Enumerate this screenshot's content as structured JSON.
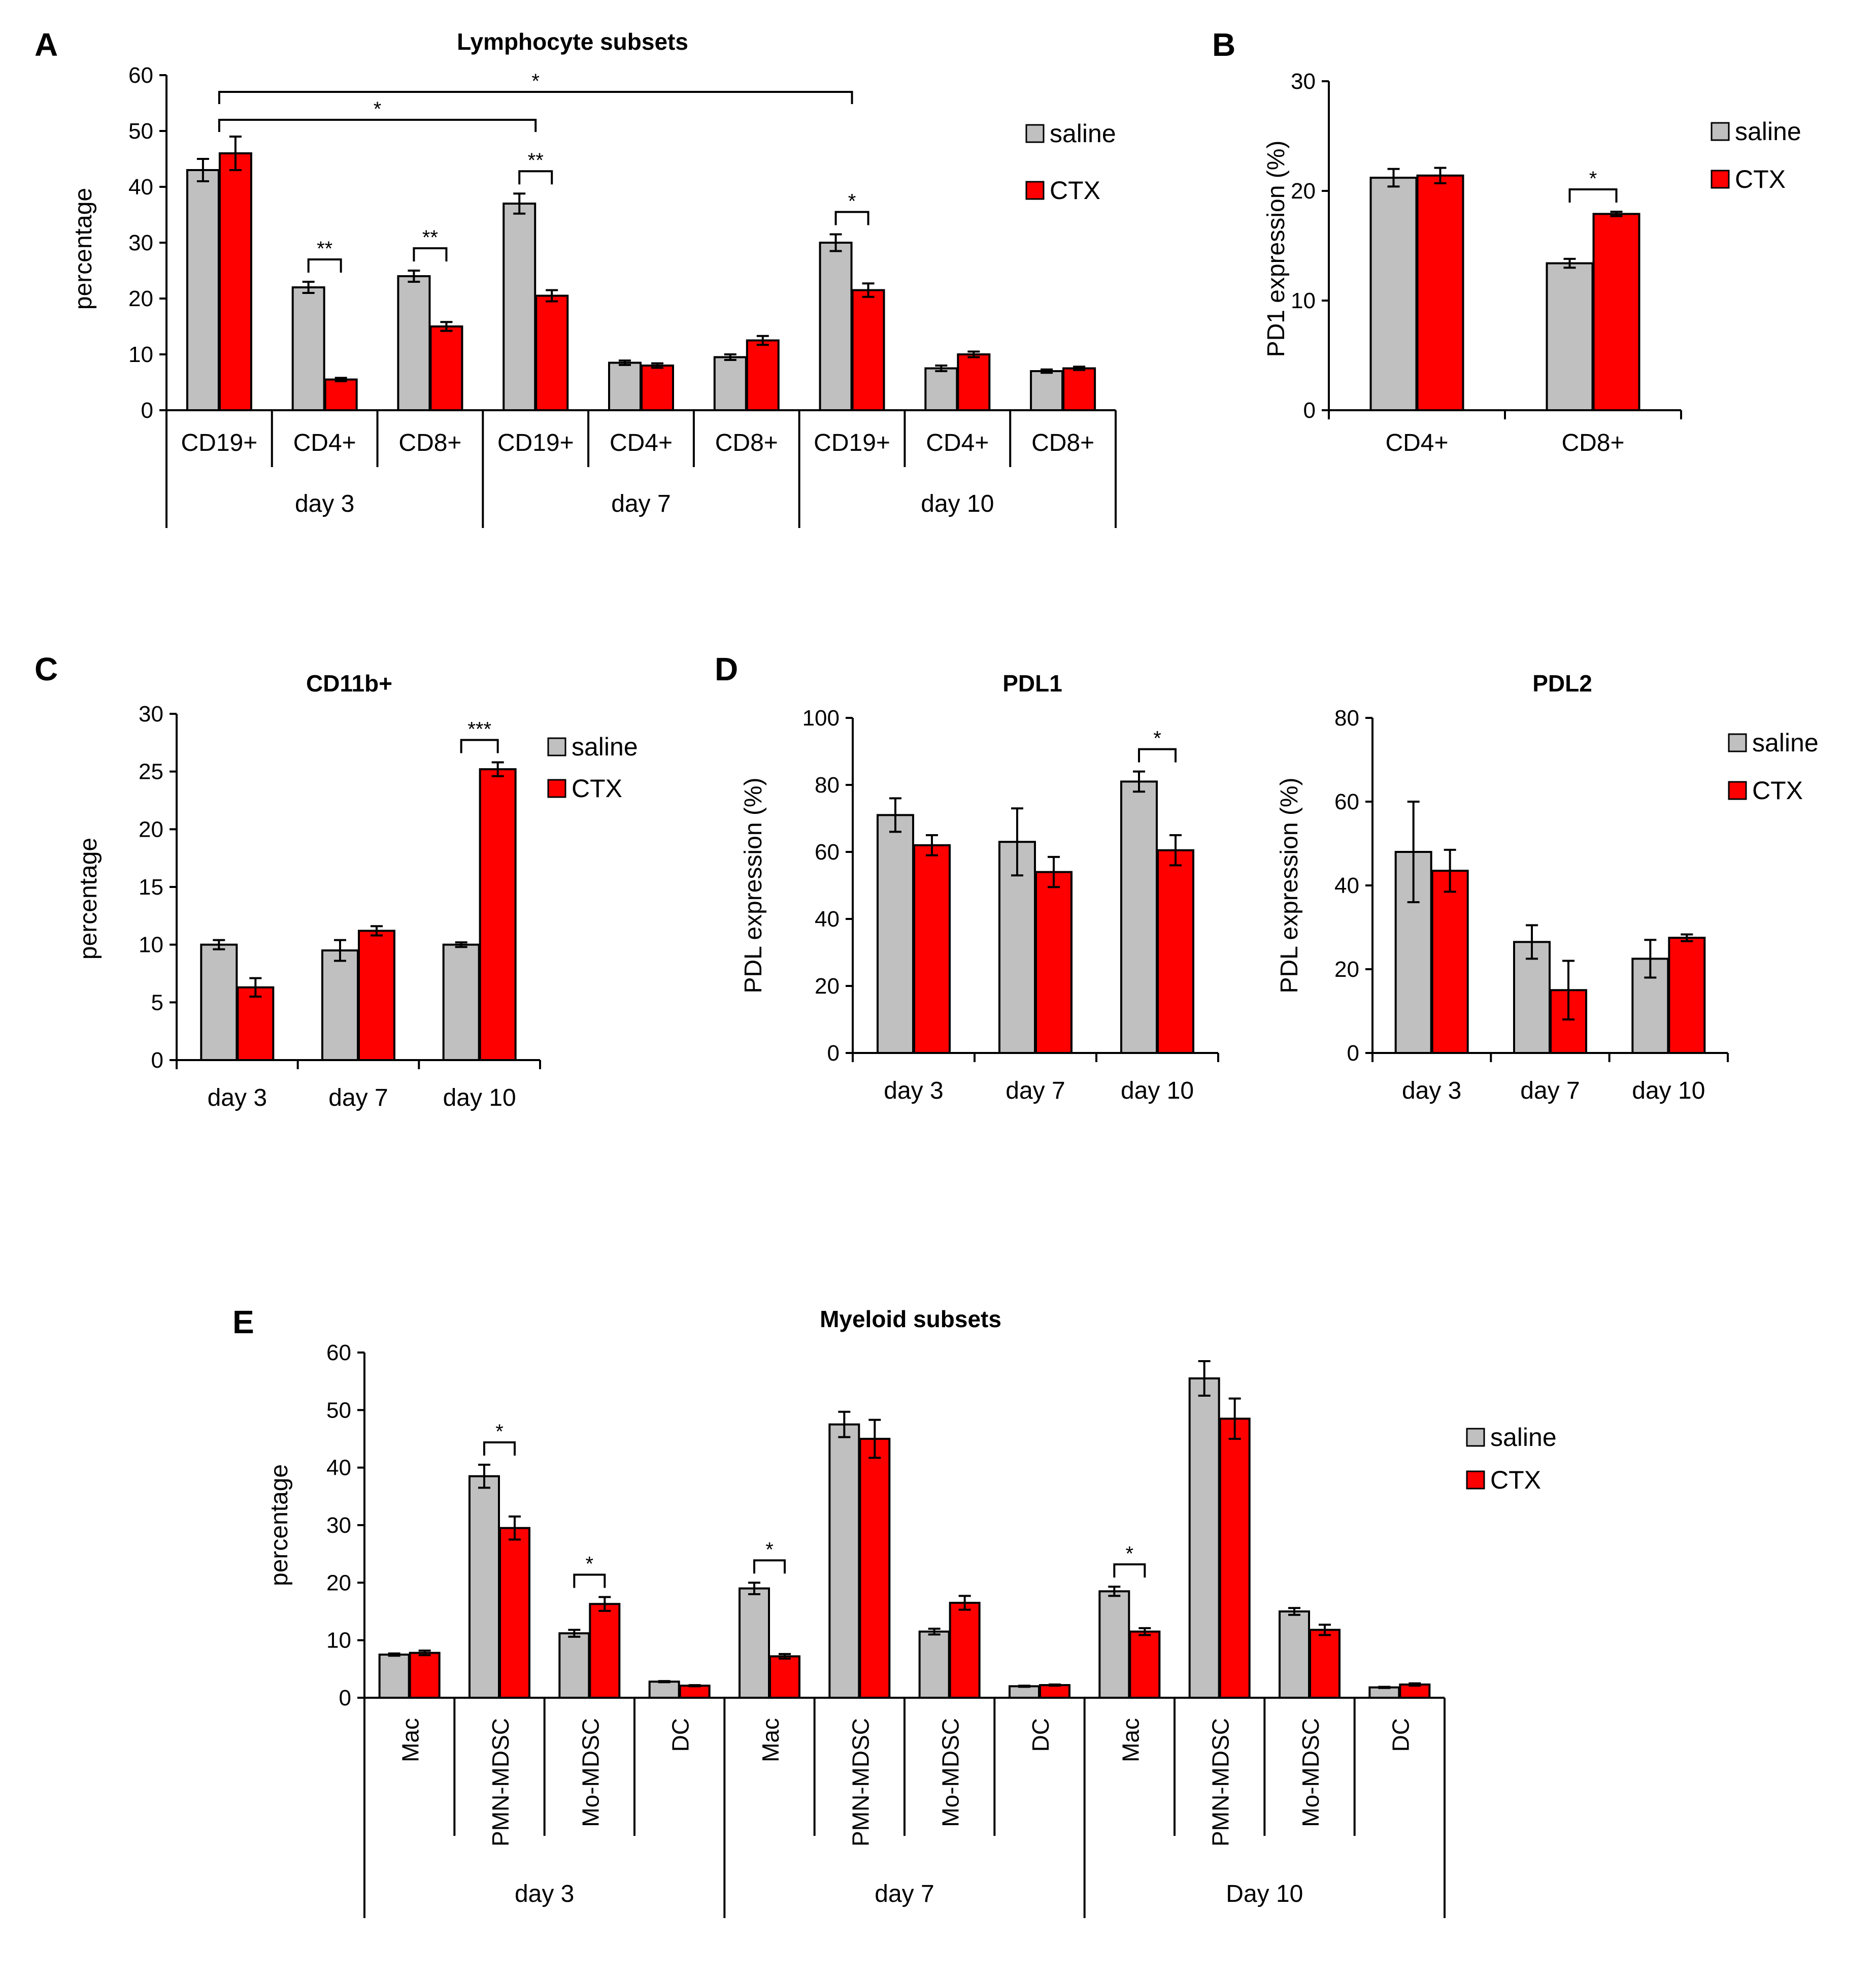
{
  "colors": {
    "saline": "#c0c0c0",
    "ctx": "#ff0000",
    "outline": "#000000"
  },
  "chart_data": [
    {
      "panel": "A",
      "type": "bar",
      "title": "Lymphocyte subsets",
      "ylabel": "percentage",
      "ylim": [
        0,
        60
      ],
      "yticks": [
        0,
        10,
        20,
        30,
        40,
        50,
        60
      ],
      "categories": [
        "CD19+",
        "CD4+",
        "CD8+",
        "CD19+",
        "CD4+",
        "CD8+",
        "CD19+",
        "CD4+",
        "CD8+"
      ],
      "groups": [
        {
          "label": "day 3",
          "start": 0,
          "end": 2
        },
        {
          "label": "day 7",
          "start": 3,
          "end": 5
        },
        {
          "label": "day 10",
          "start": 6,
          "end": 8
        }
      ],
      "series": [
        {
          "name": "saline",
          "values": [
            43,
            22,
            24,
            37,
            8.5,
            9.5,
            30,
            7.5,
            7
          ],
          "errors": [
            2,
            1,
            1,
            1.8,
            0.4,
            0.5,
            1.5,
            0.5,
            0.3
          ]
        },
        {
          "name": "CTX",
          "values": [
            46,
            5.5,
            15,
            20.5,
            8,
            12.5,
            21.5,
            10,
            7.5
          ],
          "errors": [
            3,
            0.3,
            0.8,
            1,
            0.4,
            0.8,
            1.2,
            0.5,
            0.3
          ]
        }
      ],
      "legend_position": "right",
      "annotations": [
        {
          "text": "**",
          "type": "pair",
          "cat": 1
        },
        {
          "text": "**",
          "type": "pair",
          "cat": 2
        },
        {
          "text": "**",
          "type": "pair",
          "cat": 3
        },
        {
          "text": "*",
          "type": "pair",
          "cat": 6
        },
        {
          "text": "*",
          "type": "bracket",
          "from_cat": 0,
          "to_cat": 3,
          "y": 52
        },
        {
          "text": "*",
          "type": "bracket",
          "from_cat": 0,
          "to_cat": 6,
          "y": 57
        }
      ]
    },
    {
      "panel": "B",
      "type": "bar",
      "title": "",
      "ylabel": "PD1 expression (%)",
      "ylim": [
        0,
        30
      ],
      "yticks": [
        0,
        10,
        20,
        30
      ],
      "categories": [
        "CD4+",
        "CD8+"
      ],
      "groups": [],
      "series": [
        {
          "name": "saline",
          "values": [
            21.2,
            13.4
          ],
          "errors": [
            0.8,
            0.4
          ]
        },
        {
          "name": "CTX",
          "values": [
            21.4,
            17.9
          ],
          "errors": [
            0.7,
            0.2
          ]
        }
      ],
      "legend_position": "right",
      "annotations": [
        {
          "text": "*",
          "type": "pair",
          "cat": 1
        }
      ]
    },
    {
      "panel": "C",
      "type": "bar",
      "title": "CD11b+",
      "ylabel": "percentage",
      "ylim": [
        0,
        30
      ],
      "yticks": [
        0,
        5,
        10,
        15,
        20,
        25,
        30
      ],
      "categories": [
        "day 3",
        "day 7",
        "day 10"
      ],
      "groups": [],
      "series": [
        {
          "name": "saline",
          "values": [
            10,
            9.5,
            10
          ],
          "errors": [
            0.4,
            0.9,
            0.2
          ]
        },
        {
          "name": "CTX",
          "values": [
            6.3,
            11.2,
            25.2
          ],
          "errors": [
            0.8,
            0.4,
            0.6
          ]
        }
      ],
      "legend_position": "top-right",
      "annotations": [
        {
          "text": "***",
          "type": "pair",
          "cat": 2
        }
      ]
    },
    {
      "panel": "D",
      "type": "bar",
      "title": "PDL1",
      "ylabel": "PDL expression (%)",
      "ylim": [
        0,
        100
      ],
      "yticks": [
        0,
        20,
        40,
        60,
        80,
        100
      ],
      "categories": [
        "day 3",
        "day 7",
        "day 10"
      ],
      "groups": [],
      "series": [
        {
          "name": "saline",
          "values": [
            71,
            63,
            81
          ],
          "errors": [
            5,
            10,
            3
          ]
        },
        {
          "name": "CTX",
          "values": [
            62,
            54,
            60.5
          ],
          "errors": [
            3,
            4.5,
            4.5
          ]
        }
      ],
      "annotations": [
        {
          "text": "*",
          "type": "pair",
          "cat": 2
        }
      ]
    },
    {
      "panel": "",
      "type": "bar",
      "title": "PDL2",
      "ylabel": "PDL expression (%)",
      "ylim": [
        0,
        80
      ],
      "yticks": [
        0,
        20,
        40,
        60,
        80
      ],
      "categories": [
        "day 3",
        "day 7",
        "day 10"
      ],
      "groups": [],
      "series": [
        {
          "name": "saline",
          "values": [
            48,
            26.5,
            22.5
          ],
          "errors": [
            12,
            4,
            4.5
          ]
        },
        {
          "name": "CTX",
          "values": [
            43.5,
            15,
            27.5
          ],
          "errors": [
            5,
            7,
            0.8
          ]
        }
      ],
      "legend_position": "top-right",
      "annotations": []
    },
    {
      "panel": "E",
      "type": "bar",
      "title": "Myeloid subsets",
      "ylabel": "percentage",
      "ylim": [
        0,
        60
      ],
      "yticks": [
        0,
        10,
        20,
        30,
        40,
        50,
        60
      ],
      "categories": [
        "Mac",
        "PMN-MDSC",
        "Mo-MDSC",
        "DC",
        "Mac",
        "PMN-MDSC",
        "Mo-MDSC",
        "DC",
        "Mac",
        "PMN-MDSC",
        "Mo-MDSC",
        "DC"
      ],
      "groups": [
        {
          "label": "day 3",
          "start": 0,
          "end": 3
        },
        {
          "label": "day 7",
          "start": 4,
          "end": 7
        },
        {
          "label": "Day 10",
          "start": 8,
          "end": 11
        }
      ],
      "series": [
        {
          "name": "saline",
          "values": [
            7.5,
            38.5,
            11.2,
            2.8,
            19,
            47.5,
            11.5,
            2,
            18.5,
            55.5,
            15,
            1.8
          ],
          "errors": [
            0.2,
            2,
            0.6,
            0.1,
            1,
            2.2,
            0.5,
            0.1,
            0.8,
            3,
            0.6,
            0.1
          ]
        },
        {
          "name": "CTX",
          "values": [
            7.8,
            29.5,
            16.3,
            2.1,
            7.2,
            45,
            16.5,
            2.2,
            11.5,
            48.5,
            11.8,
            2.3
          ],
          "errors": [
            0.4,
            2,
            1.2,
            0.1,
            0.4,
            3.3,
            1.2,
            0.1,
            0.6,
            3.5,
            0.9,
            0.2
          ]
        }
      ],
      "legend_position": "right",
      "annotations": [
        {
          "text": "*",
          "type": "pair",
          "cat": 1
        },
        {
          "text": "*",
          "type": "pair",
          "cat": 2
        },
        {
          "text": "*",
          "type": "pair",
          "cat": 4
        },
        {
          "text": "*",
          "type": "pair",
          "cat": 8
        }
      ]
    }
  ]
}
